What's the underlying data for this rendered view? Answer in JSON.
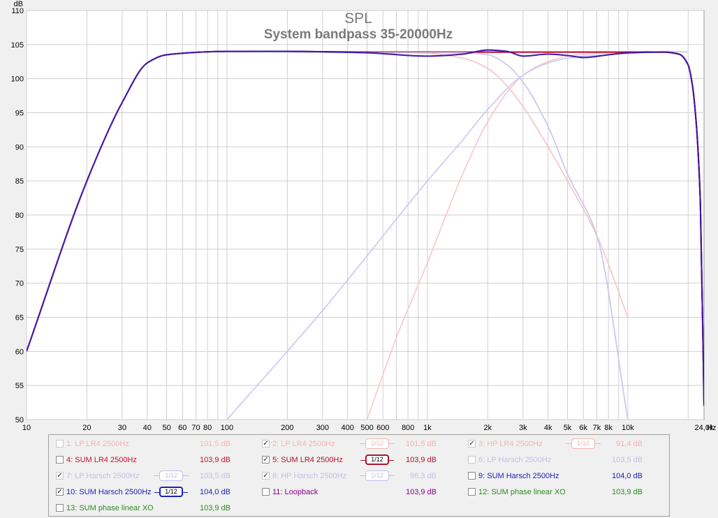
{
  "chart_data": {
    "type": "line",
    "title": "SPL",
    "subtitle": "System bandpass 35-20000Hz",
    "ylabel": "dB",
    "xlabel": "Hz",
    "xscale": "log",
    "xlim": [
      10,
      24000
    ],
    "ylim": [
      50,
      110
    ],
    "x_ticks": [
      {
        "v": 10,
        "t": "10"
      },
      {
        "v": 20,
        "t": "20"
      },
      {
        "v": 30,
        "t": "30"
      },
      {
        "v": 40,
        "t": "40"
      },
      {
        "v": 50,
        "t": "50"
      },
      {
        "v": 60,
        "t": "60"
      },
      {
        "v": 70,
        "t": "70"
      },
      {
        "v": 80,
        "t": "80"
      },
      {
        "v": 100,
        "t": "100"
      },
      {
        "v": 200,
        "t": "200"
      },
      {
        "v": 300,
        "t": "300"
      },
      {
        "v": 400,
        "t": "400"
      },
      {
        "v": 500,
        "t": "500"
      },
      {
        "v": 600,
        "t": "600"
      },
      {
        "v": 800,
        "t": "800"
      },
      {
        "v": 1000,
        "t": "1k"
      },
      {
        "v": 2000,
        "t": "2k"
      },
      {
        "v": 3000,
        "t": "3k"
      },
      {
        "v": 4000,
        "t": "4k"
      },
      {
        "v": 5000,
        "t": "5k"
      },
      {
        "v": 6000,
        "t": "6k"
      },
      {
        "v": 7000,
        "t": "7k"
      },
      {
        "v": 8000,
        "t": "8k"
      },
      {
        "v": 10000,
        "t": "10k"
      },
      {
        "v": 24000,
        "t": "24,0k"
      }
    ],
    "y_ticks": [
      50,
      55,
      60,
      65,
      70,
      75,
      80,
      85,
      90,
      95,
      100,
      105,
      110
    ],
    "grid": true,
    "series": [
      {
        "name": "1: LP LR4 2500Hz",
        "color": "#f7c7c7",
        "x": [
          10,
          20,
          30,
          40,
          50,
          100,
          500,
          1000,
          1500,
          2000,
          2500,
          3000,
          4000,
          5000,
          7000,
          10000
        ],
        "y": [
          60,
          85,
          96.5,
          102.3,
          103.5,
          104,
          103.9,
          103.7,
          103,
          101.5,
          98.9,
          95.9,
          90,
          85,
          77,
          65
        ]
      },
      {
        "name": "2: LP LR4 2500Hz",
        "color": "#f7c7c7",
        "x": [
          10,
          20,
          30,
          40,
          50,
          100,
          500,
          1000,
          1500,
          2000,
          2500,
          3000,
          4000,
          5000,
          7000,
          10000
        ],
        "y": [
          60,
          85,
          96.5,
          102.3,
          103.5,
          104,
          103.9,
          103.7,
          103,
          101.5,
          98.9,
          95.9,
          90,
          85,
          77,
          65
        ]
      },
      {
        "name": "3: HP LR4 2500Hz",
        "color": "#f7c7c7",
        "x": [
          500,
          700,
          1000,
          1500,
          2000,
          2500,
          3000,
          4000,
          5000,
          7000,
          10000,
          15000,
          20000
        ],
        "y": [
          50,
          62,
          73,
          86,
          93.7,
          98,
          100.5,
          102.5,
          103.3,
          103.7,
          103.9,
          104,
          103.9
        ]
      },
      {
        "name": "4: SUM LR4 2500Hz",
        "color": "#c8102e",
        "x": [
          10,
          20,
          30,
          40,
          50,
          100,
          200,
          500,
          1000,
          1500,
          2000,
          3000,
          5000,
          10000,
          15000,
          18000,
          20000,
          21000,
          22000,
          23000,
          24000
        ],
        "y": [
          60,
          85,
          96.5,
          102.3,
          103.5,
          104,
          104,
          103.9,
          103.9,
          103.9,
          103.9,
          103.9,
          103.9,
          103.9,
          103.9,
          103.6,
          102,
          99,
          93,
          82,
          52
        ]
      },
      {
        "name": "5: SUM LR4 2500Hz",
        "color": "#c8102e",
        "x": [
          10,
          20,
          30,
          40,
          50,
          100,
          200,
          500,
          1000,
          1500,
          2000,
          3000,
          5000,
          10000,
          15000,
          18000,
          20000,
          21000,
          22000,
          23000,
          24000
        ],
        "y": [
          60,
          85,
          96.5,
          102.3,
          103.5,
          104,
          104,
          103.9,
          103.9,
          103.9,
          103.9,
          103.9,
          103.9,
          103.9,
          103.9,
          103.6,
          102,
          99,
          93,
          82,
          52
        ]
      },
      {
        "name": "6: LP Harsch 2500Hz",
        "color": "#c9c9f2",
        "x": [
          10,
          20,
          30,
          40,
          50,
          100,
          500,
          1000,
          1500,
          2000,
          2500,
          3000,
          4000,
          5000,
          7000,
          10000
        ],
        "y": [
          60,
          85,
          96.5,
          102.3,
          103.5,
          104,
          103.8,
          103.8,
          103.8,
          103.5,
          102,
          99.5,
          93,
          86,
          77,
          50
        ]
      },
      {
        "name": "7: LP Harsch 2500Hz",
        "color": "#c9c9f2",
        "x": [
          10,
          20,
          30,
          40,
          50,
          100,
          500,
          1000,
          1500,
          2000,
          2500,
          3000,
          4000,
          5000,
          7000,
          10000
        ],
        "y": [
          60,
          85,
          96.5,
          102.3,
          103.5,
          104,
          103.8,
          103.8,
          103.8,
          103.5,
          102,
          99.5,
          93,
          86,
          77,
          50
        ]
      },
      {
        "name": "8: HP Harsch 2500Hz",
        "color": "#c9c9f2",
        "x": [
          100,
          200,
          300,
          500,
          1000,
          1500,
          2000,
          3000,
          4000,
          5000,
          6000,
          8000,
          12000,
          16000,
          20000
        ],
        "y": [
          50,
          60,
          66,
          74,
          85,
          91,
          95.5,
          100.5,
          102.3,
          103,
          103.3,
          103.5,
          103.8,
          104,
          103.9
        ]
      },
      {
        "name": "9: SUM Harsch 2500Hz",
        "color": "#1f1fb4",
        "x": [
          10,
          20,
          30,
          40,
          50,
          100,
          200,
          500,
          1000,
          1500,
          2000,
          2500,
          3000,
          4000,
          5000,
          6000,
          8000,
          10000,
          15000,
          18000,
          20000,
          21000,
          22000,
          23000,
          24000
        ],
        "y": [
          60,
          85,
          96.5,
          102.3,
          103.5,
          104,
          104,
          103.8,
          103.3,
          103.6,
          104.2,
          104,
          103.3,
          103.6,
          103.4,
          103.1,
          103.5,
          103.8,
          103.9,
          103.6,
          102,
          99,
          93,
          82,
          52
        ]
      },
      {
        "name": "10: SUM Harsch 2500Hz",
        "color": "#1f1fb4",
        "x": [
          10,
          20,
          30,
          40,
          50,
          100,
          200,
          500,
          1000,
          1500,
          2000,
          2500,
          3000,
          4000,
          5000,
          6000,
          8000,
          10000,
          15000,
          18000,
          20000,
          21000,
          22000,
          23000,
          24000
        ],
        "y": [
          60,
          85,
          96.5,
          102.3,
          103.5,
          104,
          104,
          103.8,
          103.3,
          103.6,
          104.2,
          104,
          103.3,
          103.6,
          103.4,
          103.1,
          103.5,
          103.8,
          103.9,
          103.6,
          102,
          99,
          93,
          82,
          52
        ]
      },
      {
        "name": "11: Loopback",
        "color": "#8b008b",
        "x": [
          10,
          20,
          30,
          40,
          50,
          100,
          200,
          500,
          1000,
          1500,
          2000,
          2500,
          3000,
          4000,
          5000,
          6000,
          8000,
          10000,
          15000,
          18000,
          20000,
          21000,
          22000,
          23000,
          24000
        ],
        "y": [
          60,
          85,
          96.5,
          102.3,
          103.5,
          104,
          104,
          103.8,
          103.3,
          103.6,
          104.2,
          104,
          103.3,
          103.6,
          103.4,
          103.1,
          103.5,
          103.8,
          103.9,
          103.6,
          102,
          99,
          93,
          82,
          52
        ]
      }
    ],
    "visible_order": [
      "1: LP LR4 2500Hz",
      "2: LP LR4 2500Hz",
      "3: HP LR4 2500Hz",
      "6: LP Harsch 2500Hz",
      "7: LP Harsch 2500Hz",
      "8: HP Harsch 2500Hz",
      "4: SUM LR4 2500Hz",
      "5: SUM LR4 2500Hz",
      "9: SUM Harsch 2500Hz",
      "10: SUM Harsch 2500Hz",
      "11: Loopback"
    ]
  },
  "legend": {
    "items": [
      {
        "label": "1: LP LR4 2500Hz",
        "value": "101,5 dB",
        "checked": false,
        "dim": true,
        "color": "#f5b3b3",
        "smoothing": ""
      },
      {
        "label": "2: LP LR4 2500Hz",
        "value": "101,5 dB",
        "checked": true,
        "dim": true,
        "color": "#f5b3b3",
        "smoothing": "1/12"
      },
      {
        "label": "3: HP LR4 2500Hz",
        "value": "91,4 dB",
        "checked": true,
        "dim": true,
        "color": "#f5b3b3",
        "smoothing": "1/12"
      },
      {
        "label": "4: SUM LR4 2500Hz",
        "value": "103,9 dB",
        "checked": false,
        "dim": false,
        "color": "#c8102e",
        "smoothing": ""
      },
      {
        "label": "5: SUM LR4 2500Hz",
        "value": "103,9 dB",
        "checked": true,
        "dim": false,
        "color": "#b0102e",
        "smoothing": "1/12",
        "bold": true
      },
      {
        "label": "6: LP Harsch 2500Hz",
        "value": "103,5 dB",
        "checked": false,
        "dim": true,
        "color": "#c0c0ea",
        "smoothing": ""
      },
      {
        "label": "7: LP Harsch 2500Hz",
        "value": "103,5 dB",
        "checked": true,
        "dim": true,
        "color": "#c0c0ea",
        "smoothing": "1/12"
      },
      {
        "label": "8: HP Harsch 2500Hz",
        "value": "96,3 dB",
        "checked": true,
        "dim": true,
        "color": "#c0c0ea",
        "smoothing": "1/12"
      },
      {
        "label": "9: SUM Harsch 2500Hz",
        "value": "104,0 dB",
        "checked": false,
        "dim": false,
        "color": "#1f1fb4",
        "smoothing": ""
      },
      {
        "label": "10: SUM Harsch 2500Hz",
        "value": "104,0 dB",
        "checked": true,
        "dim": false,
        "color": "#1f1fb4",
        "smoothing": "1/12",
        "bold": true
      },
      {
        "label": "11: Loopback",
        "value": "103,9 dB",
        "checked": false,
        "dim": false,
        "color": "#8b008b",
        "smoothing": ""
      },
      {
        "label": "12: SUM phase linear XO",
        "value": "103,9 dB",
        "checked": false,
        "dim": false,
        "color": "#2e8b22",
        "smoothing": ""
      },
      {
        "label": "13: SUM phase linear XO",
        "value": "103,9 dB",
        "checked": false,
        "dim": false,
        "color": "#2e8b22",
        "smoothing": ""
      }
    ]
  }
}
